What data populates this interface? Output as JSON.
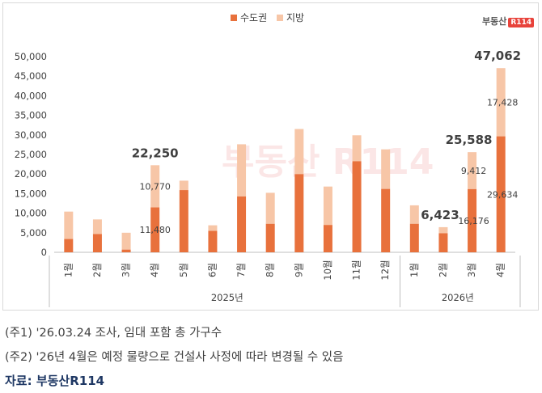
{
  "chart_data": {
    "type": "bar",
    "stacked": true,
    "categories": [
      "1월",
      "2월",
      "3월",
      "4월",
      "5월",
      "6월",
      "7월",
      "8월",
      "9월",
      "10월",
      "11월",
      "12월",
      "1월",
      "2월",
      "3월",
      "4월"
    ],
    "groups": [
      {
        "label": "2025년",
        "count": 12
      },
      {
        "label": "2026년",
        "count": 4
      }
    ],
    "series": [
      {
        "name": "수도권",
        "color": "#e8713c",
        "values": [
          3400,
          4700,
          700,
          11480,
          15900,
          5500,
          14300,
          7300,
          20000,
          7000,
          23300,
          16200,
          7300,
          4900,
          16176,
          29634
        ]
      },
      {
        "name": "지방",
        "color": "#f7c6a7",
        "values": [
          7000,
          3700,
          4300,
          10770,
          2400,
          1400,
          13300,
          7900,
          11500,
          9800,
          6600,
          10100,
          4700,
          1523,
          9412,
          17428
        ]
      }
    ],
    "data_labels": [
      {
        "index": 3,
        "series": "수도권",
        "text": "11,480"
      },
      {
        "index": 3,
        "series": "지방",
        "text": "10,770"
      },
      {
        "index": 14,
        "series": "수도권",
        "text": "16,176"
      },
      {
        "index": 14,
        "series": "지방",
        "text": "9,412"
      },
      {
        "index": 15,
        "series": "수도권",
        "text": "29,634"
      },
      {
        "index": 15,
        "series": "지방",
        "text": "17,428"
      }
    ],
    "total_labels": [
      {
        "index": 3,
        "text": "22,250"
      },
      {
        "index": 13,
        "text": "6,423"
      },
      {
        "index": 14,
        "text": "25,588"
      },
      {
        "index": 15,
        "text": "47,062"
      }
    ],
    "yticks": [
      "0",
      "5,000",
      "10,000",
      "15,000",
      "20,000",
      "25,000",
      "30,000",
      "35,000",
      "40,000",
      "45,000",
      "50,000"
    ],
    "ylim": [
      0,
      50000
    ],
    "legend_position": "top-center"
  },
  "logo": {
    "text": "부동산",
    "badge": "R114"
  },
  "watermark": "부동산 R114",
  "notes": [
    "(주1) '26.03.24 조사, 임대 포함 총 가구수",
    "(주2) '26년 4월은 예정 물량으로 건설사 사정에 따라 변경될 수 있음"
  ],
  "source": "자료: 부동산R114"
}
